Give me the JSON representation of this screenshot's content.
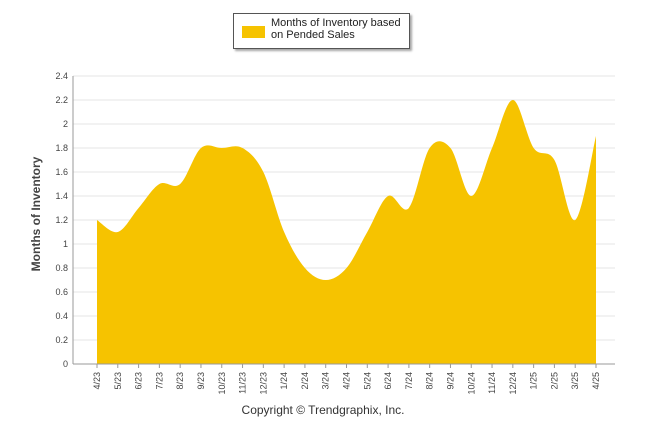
{
  "chart_data": {
    "type": "area",
    "categories": [
      "4/23",
      "5/23",
      "6/23",
      "7/23",
      "8/23",
      "9/23",
      "10/23",
      "11/23",
      "12/23",
      "1/24",
      "2/24",
      "3/24",
      "4/24",
      "5/24",
      "6/24",
      "7/24",
      "8/24",
      "9/24",
      "10/24",
      "11/24",
      "12/24",
      "1/25",
      "2/25",
      "3/25",
      "4/25"
    ],
    "series": [
      {
        "name": "Months of Inventory based on Pended Sales",
        "values": [
          1.2,
          1.1,
          1.3,
          1.5,
          1.5,
          1.8,
          1.8,
          1.8,
          1.6,
          1.1,
          0.8,
          0.7,
          0.8,
          1.1,
          1.4,
          1.3,
          1.8,
          1.8,
          1.4,
          1.8,
          2.2,
          1.8,
          1.7,
          1.2,
          1.9
        ]
      }
    ],
    "ylabel": "Months of Inventory",
    "xlabel": "",
    "ylim": [
      0,
      2.4
    ],
    "yticks": [
      "0",
      "0.2",
      "0.4",
      "0.6",
      "0.8",
      "1",
      "1.2",
      "1.4",
      "1.6",
      "1.8",
      "2",
      "2.2",
      "2.4"
    ],
    "grid": true,
    "legend_placement": "top-center"
  },
  "colors": {
    "series": "#f6c300",
    "grid": "#e6e6e6",
    "axis": "#999999"
  },
  "legend": {
    "label": "Months of Inventory based on Pended Sales"
  },
  "footer": {
    "copyright": "Copyright © Trendgraphix, Inc."
  }
}
